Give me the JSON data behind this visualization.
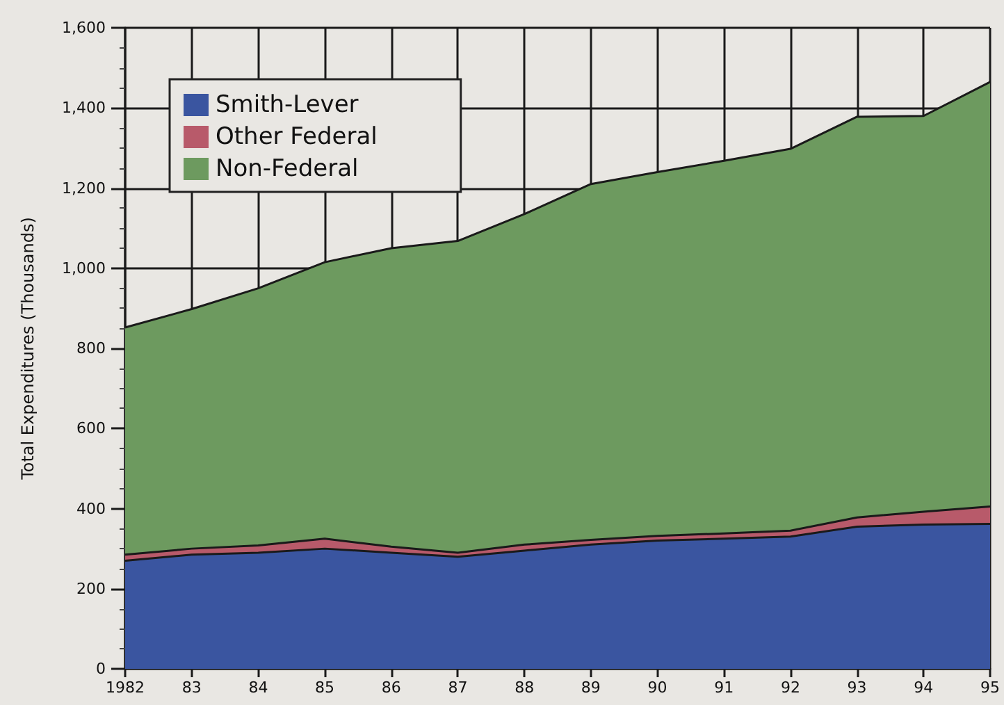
{
  "chart_data": {
    "type": "area",
    "stacked": true,
    "ylabel": "Total Expenditures (Thousands)",
    "categories": [
      "1982",
      "83",
      "84",
      "85",
      "86",
      "87",
      "88",
      "89",
      "90",
      "91",
      "92",
      "93",
      "94",
      "95"
    ],
    "series": [
      {
        "name": "Smith-Lever",
        "color": "#3a55a0",
        "values": [
          270,
          285,
          290,
          300,
          290,
          280,
          295,
          310,
          320,
          325,
          330,
          355,
          360,
          362
        ]
      },
      {
        "name": "Other Federal",
        "color": "#b85a6a",
        "values": [
          15,
          15,
          18,
          25,
          15,
          10,
          15,
          12,
          12,
          13,
          15,
          23,
          32,
          43
        ]
      },
      {
        "name": "Non-Federal",
        "color": "#6d9a5f",
        "values": [
          567,
          598,
          642,
          690,
          745,
          778,
          825,
          888,
          908,
          930,
          953,
          1000,
          988,
          1060
        ]
      }
    ],
    "ylim": [
      0,
      1600
    ],
    "yticks": [
      {
        "value": 0,
        "label": "0"
      },
      {
        "value": 50,
        "label": null
      },
      {
        "value": 100,
        "label": null
      },
      {
        "value": 150,
        "label": null
      },
      {
        "value": 200,
        "label": "200"
      },
      {
        "value": 250,
        "label": null
      },
      {
        "value": 300,
        "label": null
      },
      {
        "value": 350,
        "label": null
      },
      {
        "value": 400,
        "label": "400"
      },
      {
        "value": 450,
        "label": null
      },
      {
        "value": 500,
        "label": null
      },
      {
        "value": 550,
        "label": null
      },
      {
        "value": 600,
        "label": "600"
      },
      {
        "value": 650,
        "label": null
      },
      {
        "value": 700,
        "label": null
      },
      {
        "value": 750,
        "label": null
      },
      {
        "value": 800,
        "label": "800"
      },
      {
        "value": 850,
        "label": null
      },
      {
        "value": 900,
        "label": null
      },
      {
        "value": 950,
        "label": null
      },
      {
        "value": 1000,
        "label": "1,000"
      },
      {
        "value": 1050,
        "label": null
      },
      {
        "value": 1100,
        "label": null
      },
      {
        "value": 1150,
        "label": null
      },
      {
        "value": 1200,
        "label": "1,200"
      },
      {
        "value": 1250,
        "label": null
      },
      {
        "value": 1300,
        "label": null
      },
      {
        "value": 1350,
        "label": null
      },
      {
        "value": 1400,
        "label": "1,400"
      },
      {
        "value": 1450,
        "label": null
      },
      {
        "value": 1500,
        "label": null
      },
      {
        "value": 1550,
        "label": null
      },
      {
        "value": 1600,
        "label": "1,600"
      }
    ],
    "grid": true,
    "legend": "top left",
    "marker": "none"
  }
}
